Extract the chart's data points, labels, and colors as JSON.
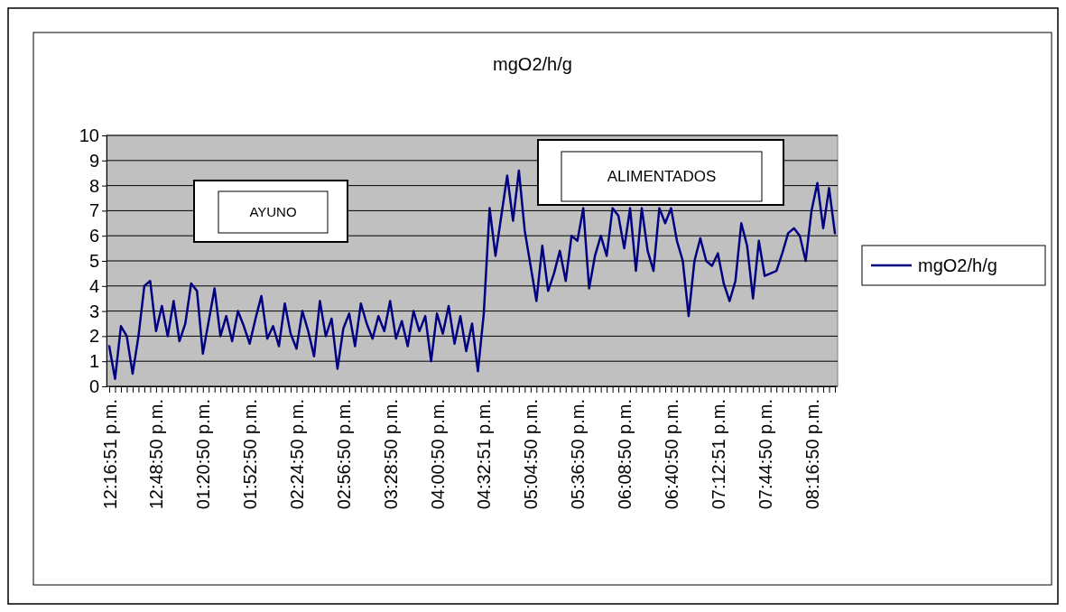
{
  "chart_data": {
    "type": "line",
    "title": "mgO2/h/g",
    "categories": [
      "12:16:51 p.m.",
      null,
      null,
      null,
      null,
      null,
      null,
      null,
      "12:48:50 p.m.",
      null,
      null,
      null,
      null,
      null,
      null,
      null,
      "01:20:50 p.m.",
      null,
      null,
      null,
      null,
      null,
      null,
      null,
      "01:52:50 p.m.",
      null,
      null,
      null,
      null,
      null,
      null,
      null,
      "02:24:50 p.m.",
      null,
      null,
      null,
      null,
      null,
      null,
      null,
      "02:56:50 p.m.",
      null,
      null,
      null,
      null,
      null,
      null,
      null,
      "03:28:50 p.m.",
      null,
      null,
      null,
      null,
      null,
      null,
      null,
      "04:00:50 p.m.",
      null,
      null,
      null,
      null,
      null,
      null,
      null,
      "04:32:51 p.m.",
      null,
      null,
      null,
      null,
      null,
      null,
      null,
      "05:04:50 p.m.",
      null,
      null,
      null,
      null,
      null,
      null,
      null,
      "05:36:50 p.m.",
      null,
      null,
      null,
      null,
      null,
      null,
      null,
      "06:08:50 p.m.",
      null,
      null,
      null,
      null,
      null,
      null,
      null,
      "06:40:50 p.m.",
      null,
      null,
      null,
      null,
      null,
      null,
      null,
      "07:12:51 p.m.",
      null,
      null,
      null,
      null,
      null,
      null,
      null,
      "07:44:50 p.m.",
      null,
      null,
      null,
      null,
      null,
      null,
      null,
      "08:16:50 p.m.",
      null,
      null,
      null,
      null
    ],
    "series": [
      {
        "name": "mgO2/h/g",
        "color": "#000080",
        "values": [
          1.6,
          0.3,
          2.4,
          2.0,
          0.5,
          2.0,
          4.0,
          4.2,
          2.2,
          3.2,
          2.0,
          3.4,
          1.8,
          2.5,
          4.1,
          3.8,
          1.3,
          2.6,
          3.9,
          2.0,
          2.8,
          1.8,
          3.0,
          2.4,
          1.7,
          2.7,
          3.6,
          1.9,
          2.4,
          1.6,
          3.3,
          2.1,
          1.5,
          3.0,
          2.2,
          1.2,
          3.4,
          2.0,
          2.7,
          0.7,
          2.3,
          2.9,
          1.6,
          3.3,
          2.5,
          1.9,
          2.8,
          2.2,
          3.4,
          1.9,
          2.6,
          1.6,
          3.0,
          2.2,
          2.8,
          1.0,
          2.9,
          2.1,
          3.2,
          1.7,
          2.8,
          1.4,
          2.5,
          0.6,
          2.9,
          7.1,
          5.2,
          6.8,
          8.4,
          6.6,
          8.6,
          6.2,
          4.8,
          3.4,
          5.6,
          3.8,
          4.5,
          5.4,
          4.2,
          6.0,
          5.8,
          7.1,
          3.9,
          5.2,
          6.0,
          5.2,
          7.1,
          6.8,
          5.5,
          7.1,
          4.6,
          7.1,
          5.4,
          4.6,
          7.1,
          6.5,
          7.1,
          5.8,
          5.0,
          2.8,
          5.0,
          5.9,
          5.0,
          4.8,
          5.3,
          4.1,
          3.4,
          4.2,
          6.5,
          5.6,
          3.5,
          5.8,
          4.4,
          4.5,
          4.6,
          5.3,
          6.1,
          6.3,
          6.0,
          5.0,
          7.0,
          8.1,
          6.3,
          7.9,
          6.1
        ]
      }
    ],
    "ylim": [
      0,
      10
    ],
    "yticks": [
      0,
      1,
      2,
      3,
      4,
      5,
      6,
      7,
      8,
      9,
      10
    ],
    "grid": "y",
    "legend": "right",
    "annotations": [
      "AYUNO",
      "ALIMENTADOS"
    ]
  }
}
